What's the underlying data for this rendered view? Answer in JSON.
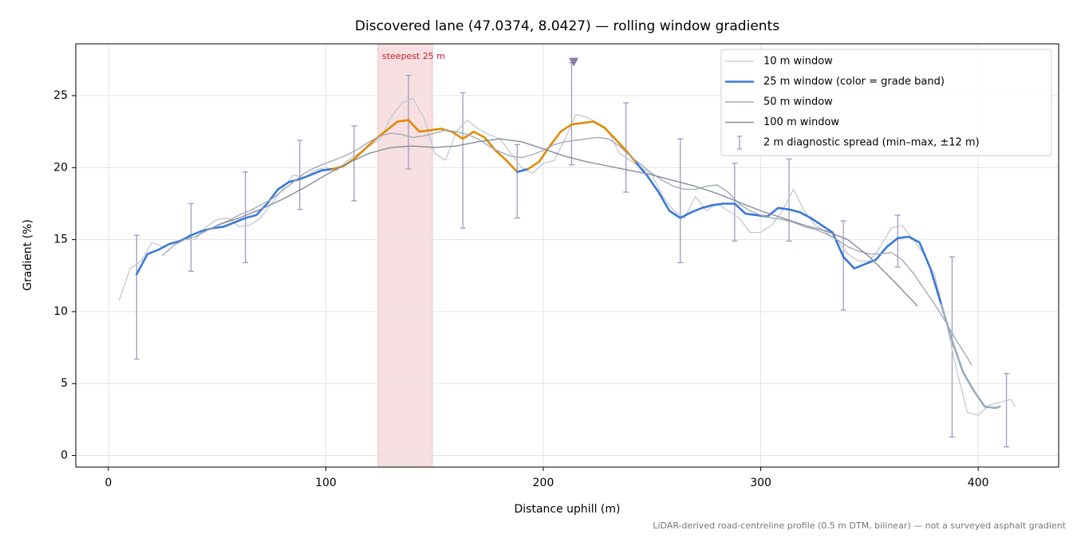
{
  "chart_data": {
    "type": "line",
    "title": "Discovered lane (47.0374, 8.0427) — rolling window gradients",
    "x_label": "Distance uphill (m)",
    "y_label": "Gradient (%)",
    "footnote": "LiDAR-derived road-centreline profile (0.5 m DTM, bilinear) — not a surveyed asphalt gradient",
    "xlim": [
      -15,
      437
    ],
    "ylim": [
      -0.8,
      28.6
    ],
    "xticks": [
      0,
      100,
      200,
      300,
      400
    ],
    "yticks": [
      0,
      5,
      10,
      15,
      20,
      25
    ],
    "grid": true,
    "legend": "upper right",
    "series": [
      {
        "name": "10 m window",
        "color": "#c3c8d2",
        "width": 1.3,
        "x": [
          5,
          10,
          15,
          20,
          25,
          30,
          35,
          40,
          45,
          50,
          55,
          60,
          65,
          70,
          75,
          80,
          85,
          90,
          95,
          100,
          105,
          110,
          115,
          120,
          125,
          130,
          135,
          140,
          145,
          150,
          155,
          160,
          165,
          170,
          175,
          180,
          185,
          190,
          195,
          200,
          205,
          210,
          215,
          220,
          225,
          230,
          235,
          240,
          245,
          250,
          255,
          260,
          265,
          270,
          275,
          280,
          285,
          290,
          295,
          300,
          305,
          310,
          315,
          320,
          325,
          330,
          335,
          340,
          345,
          350,
          355,
          360,
          365,
          370,
          375,
          380,
          385,
          390,
          395,
          400,
          405,
          410,
          415,
          417
        ],
        "values": [
          10.8,
          13.0,
          13.5,
          14.8,
          14.5,
          14.8,
          15.0,
          15.0,
          15.9,
          16.4,
          16.5,
          15.9,
          16.0,
          16.5,
          17.5,
          18.5,
          19.5,
          19.3,
          19.8,
          20.0,
          19.8,
          20.5,
          21.0,
          21.5,
          22.0,
          23.5,
          24.5,
          24.8,
          23.5,
          21.0,
          20.5,
          22.5,
          23.3,
          22.7,
          22.3,
          22.0,
          21.0,
          20.0,
          19.6,
          20.3,
          20.5,
          22.0,
          23.7,
          23.5,
          23.1,
          22.5,
          21.0,
          20.5,
          20.0,
          19.5,
          18.0,
          17.0,
          16.5,
          18.0,
          17.0,
          17.5,
          17.0,
          16.5,
          15.5,
          15.5,
          16.0,
          17.0,
          18.5,
          17.0,
          16.0,
          15.5,
          15.0,
          14.0,
          13.5,
          13.5,
          14.5,
          15.8,
          16.0,
          15.0,
          14.0,
          12.5,
          9.5,
          6.0,
          3.0,
          2.8,
          3.5,
          3.7,
          3.9,
          3.4
        ]
      },
      {
        "name": "25 m window (color = grade band)",
        "color": "#3a78d8",
        "width": 2.6,
        "band_thresholds": [
          10,
          20
        ],
        "band_colors": [
          "#9aaabf",
          "#3a78d8",
          "#e08a00"
        ],
        "x": [
          13,
          18,
          23,
          28,
          33,
          38,
          43,
          48,
          53,
          58,
          63,
          68,
          73,
          78,
          83,
          88,
          93,
          98,
          103,
          108,
          113,
          118,
          123,
          128,
          133,
          138,
          143,
          148,
          153,
          158,
          163,
          168,
          173,
          178,
          183,
          188,
          193,
          198,
          203,
          208,
          213,
          218,
          223,
          228,
          233,
          238,
          243,
          248,
          253,
          258,
          263,
          268,
          273,
          278,
          283,
          288,
          293,
          298,
          303,
          308,
          313,
          318,
          323,
          328,
          333,
          338,
          343,
          348,
          353,
          358,
          363,
          368,
          373,
          378,
          383,
          388,
          393,
          398,
          403,
          408,
          410
        ],
        "values": [
          12.6,
          14.0,
          14.3,
          14.7,
          14.9,
          15.3,
          15.6,
          15.8,
          15.9,
          16.2,
          16.5,
          16.7,
          17.5,
          18.5,
          19.0,
          19.2,
          19.5,
          19.8,
          19.9,
          20.1,
          20.6,
          21.3,
          22.0,
          22.6,
          23.2,
          23.3,
          22.5,
          22.6,
          22.7,
          22.5,
          22.0,
          22.5,
          22.1,
          21.2,
          20.5,
          19.7,
          19.9,
          20.4,
          21.5,
          22.5,
          23.0,
          23.1,
          23.2,
          22.8,
          22.0,
          21.2,
          20.3,
          19.4,
          18.3,
          17.0,
          16.5,
          16.9,
          17.2,
          17.4,
          17.5,
          17.5,
          16.8,
          16.7,
          16.6,
          17.2,
          17.1,
          16.9,
          16.5,
          16.0,
          15.5,
          13.8,
          13.0,
          13.3,
          13.6,
          14.5,
          15.1,
          15.2,
          14.8,
          13.0,
          10.5,
          8.0,
          5.8,
          4.5,
          3.4,
          3.3,
          3.4
        ]
      },
      {
        "name": "50 m window",
        "color": "#a3aab8",
        "width": 1.4,
        "x": [
          25,
          30,
          35,
          40,
          45,
          50,
          55,
          60,
          65,
          70,
          75,
          80,
          85,
          90,
          95,
          100,
          105,
          110,
          115,
          120,
          125,
          130,
          135,
          140,
          145,
          150,
          155,
          160,
          165,
          170,
          175,
          180,
          185,
          190,
          195,
          200,
          205,
          210,
          215,
          220,
          225,
          230,
          235,
          240,
          245,
          250,
          255,
          260,
          265,
          270,
          275,
          280,
          285,
          290,
          295,
          300,
          305,
          310,
          315,
          320,
          325,
          330,
          335,
          340,
          345,
          350,
          355,
          360,
          365,
          370,
          375,
          380,
          385,
          390,
          395,
          397
        ],
        "values": [
          13.9,
          14.6,
          15.0,
          15.2,
          15.6,
          16.0,
          16.3,
          16.7,
          17.0,
          17.4,
          17.8,
          18.4,
          19.0,
          19.6,
          20.0,
          20.3,
          20.6,
          20.9,
          21.3,
          21.8,
          22.2,
          22.4,
          22.3,
          22.1,
          22.2,
          22.4,
          22.6,
          22.5,
          22.3,
          22.0,
          21.5,
          21.1,
          20.8,
          20.7,
          20.9,
          21.2,
          21.6,
          21.8,
          21.9,
          22.0,
          22.1,
          22.0,
          21.5,
          20.8,
          20.2,
          19.6,
          19.1,
          18.7,
          18.5,
          18.5,
          18.7,
          18.8,
          18.3,
          17.5,
          17.0,
          16.7,
          16.5,
          16.4,
          16.2,
          15.9,
          15.7,
          15.4,
          15.0,
          14.5,
          14.2,
          14.0,
          14.0,
          14.1,
          13.6,
          12.7,
          11.6,
          10.5,
          9.3,
          8.0,
          6.8,
          6.3
        ]
      },
      {
        "name": "100 m window",
        "color": "#878d9b",
        "width": 1.4,
        "x": [
          50,
          60,
          70,
          80,
          90,
          100,
          110,
          120,
          130,
          140,
          150,
          160,
          170,
          180,
          190,
          200,
          210,
          220,
          230,
          240,
          250,
          260,
          270,
          280,
          290,
          300,
          310,
          320,
          330,
          340,
          350,
          360,
          372
        ],
        "values": [
          16.0,
          16.5,
          17.1,
          17.8,
          18.6,
          19.5,
          20.3,
          21.0,
          21.4,
          21.5,
          21.4,
          21.5,
          21.8,
          22.0,
          21.8,
          21.3,
          20.8,
          20.4,
          20.1,
          19.8,
          19.5,
          19.1,
          18.7,
          18.2,
          17.6,
          17.0,
          16.5,
          16.0,
          15.6,
          15.0,
          13.8,
          12.3,
          10.4
        ]
      }
    ],
    "error_bars": {
      "name": "2 m diagnostic spread (min–max, ±12 m)",
      "color": "#9d9bbd",
      "x": [
        13,
        38,
        63,
        88,
        113,
        138,
        163,
        188,
        213,
        238,
        263,
        288,
        313,
        338,
        363,
        388,
        413
      ],
      "min": [
        6.7,
        12.8,
        13.4,
        17.1,
        17.7,
        19.9,
        15.8,
        16.5,
        20.2,
        18.3,
        13.4,
        14.9,
        14.9,
        10.1,
        13.1,
        1.3,
        0.6
      ],
      "max": [
        15.3,
        17.5,
        19.7,
        21.9,
        22.9,
        26.4,
        25.2,
        21.6,
        27.3,
        24.5,
        22.0,
        20.3,
        20.6,
        16.3,
        16.7,
        13.8,
        5.7
      ]
    },
    "span": {
      "from": 124,
      "to": 149,
      "label": "steepest 25 m",
      "color": "#e8a0a4",
      "label_color": "#c8202c"
    },
    "marker": {
      "x": 214,
      "y": 27.3,
      "color": "#8a7ba8"
    }
  }
}
